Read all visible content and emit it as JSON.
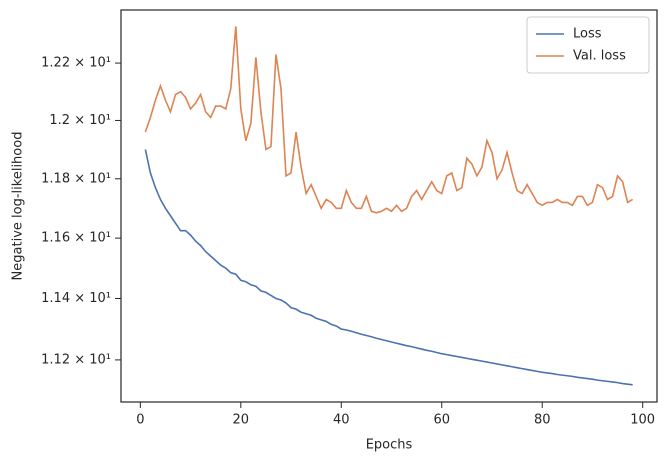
{
  "chart_data": {
    "type": "line",
    "xlabel": "Epochs",
    "ylabel": "Negative log-likelihood",
    "x": [
      1,
      2,
      3,
      4,
      5,
      6,
      7,
      8,
      9,
      10,
      11,
      12,
      13,
      14,
      15,
      16,
      17,
      18,
      19,
      20,
      21,
      22,
      23,
      24,
      25,
      26,
      27,
      28,
      29,
      30,
      31,
      32,
      33,
      34,
      35,
      36,
      37,
      38,
      39,
      40,
      41,
      42,
      43,
      44,
      45,
      46,
      47,
      48,
      49,
      50,
      51,
      52,
      53,
      54,
      55,
      56,
      57,
      58,
      59,
      60,
      61,
      62,
      63,
      64,
      65,
      66,
      67,
      68,
      69,
      70,
      71,
      72,
      73,
      74,
      75,
      76,
      77,
      78,
      79,
      80,
      81,
      82,
      83,
      84,
      85,
      86,
      87,
      88,
      89,
      90,
      91,
      92,
      93,
      94,
      95,
      96,
      97,
      98
    ],
    "series": [
      {
        "name": "Loss",
        "color": "#4c72b0",
        "values": [
          11.9,
          11.82,
          11.77,
          11.73,
          11.7,
          11.675,
          11.65,
          11.625,
          11.625,
          11.61,
          11.59,
          11.575,
          11.555,
          11.54,
          11.525,
          11.51,
          11.5,
          11.485,
          11.48,
          11.46,
          11.455,
          11.445,
          11.44,
          11.425,
          11.42,
          11.41,
          11.4,
          11.395,
          11.385,
          11.37,
          11.365,
          11.355,
          11.35,
          11.345,
          11.335,
          11.33,
          11.325,
          11.315,
          11.31,
          11.3,
          11.297,
          11.293,
          11.288,
          11.283,
          11.279,
          11.275,
          11.27,
          11.266,
          11.262,
          11.258,
          11.254,
          11.25,
          11.246,
          11.243,
          11.239,
          11.235,
          11.231,
          11.228,
          11.224,
          11.22,
          11.217,
          11.214,
          11.211,
          11.208,
          11.205,
          11.202,
          11.199,
          11.196,
          11.193,
          11.19,
          11.187,
          11.184,
          11.181,
          11.178,
          11.175,
          11.172,
          11.169,
          11.166,
          11.163,
          11.16,
          11.158,
          11.156,
          11.153,
          11.151,
          11.149,
          11.147,
          11.144,
          11.142,
          11.14,
          11.138,
          11.135,
          11.133,
          11.131,
          11.129,
          11.127,
          11.124,
          11.122,
          11.12
        ]
      },
      {
        "name": "Val. loss",
        "color": "#dd8452",
        "values": [
          11.96,
          12.01,
          12.07,
          12.12,
          12.07,
          12.03,
          12.09,
          12.1,
          12.08,
          12.04,
          12.06,
          12.09,
          12.03,
          12.01,
          12.05,
          12.05,
          12.04,
          12.11,
          12.33,
          12.04,
          11.93,
          11.99,
          12.22,
          12.03,
          11.9,
          11.91,
          12.23,
          12.11,
          11.81,
          11.82,
          11.96,
          11.84,
          11.75,
          11.78,
          11.74,
          11.7,
          11.73,
          11.72,
          11.7,
          11.7,
          11.76,
          11.72,
          11.7,
          11.7,
          11.74,
          11.69,
          11.685,
          11.69,
          11.7,
          11.69,
          11.71,
          11.69,
          11.7,
          11.74,
          11.76,
          11.73,
          11.76,
          11.79,
          11.76,
          11.75,
          11.81,
          11.82,
          11.76,
          11.77,
          11.87,
          11.85,
          11.81,
          11.84,
          11.93,
          11.89,
          11.8,
          11.83,
          11.89,
          11.82,
          11.76,
          11.75,
          11.78,
          11.75,
          11.72,
          11.71,
          11.72,
          11.72,
          11.73,
          11.72,
          11.72,
          11.71,
          11.74,
          11.74,
          11.71,
          11.72,
          11.78,
          11.77,
          11.73,
          11.74,
          11.81,
          11.79,
          11.72,
          11.73
        ]
      }
    ],
    "xlim": [
      -3.85,
      102.85
    ],
    "xticks": [
      0,
      20,
      40,
      60,
      80,
      100
    ],
    "ylim": [
      11.065,
      12.388
    ],
    "yscale": "log",
    "yticks": [
      {
        "value": 11.2,
        "label": "1.12 × 10¹"
      },
      {
        "value": 11.4,
        "label": "1.14 × 10¹"
      },
      {
        "value": 11.6,
        "label": "1.16 × 10¹"
      },
      {
        "value": 11.8,
        "label": "1.18 × 10¹"
      },
      {
        "value": 12.0,
        "label": "1.2 × 10¹"
      },
      {
        "value": 12.2,
        "label": "1.22 × 10¹"
      }
    ],
    "grid": false,
    "legend": "upper right"
  }
}
